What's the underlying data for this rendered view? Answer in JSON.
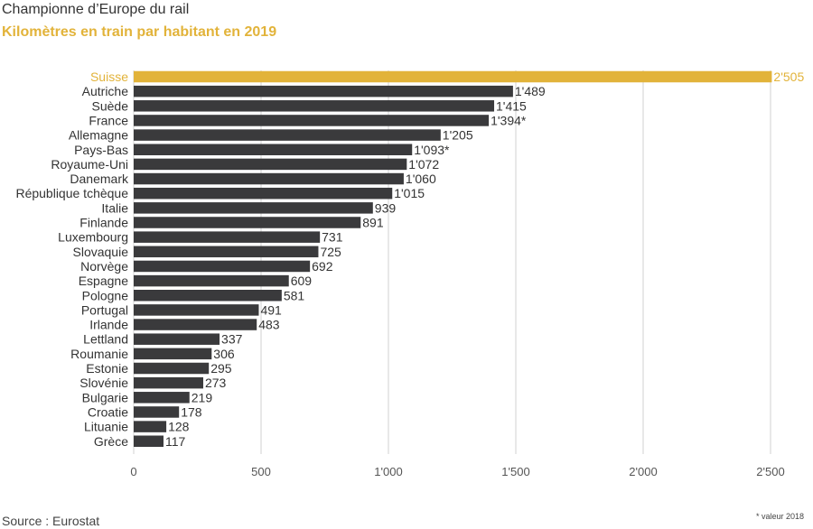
{
  "title": "Championne d’Europe du rail",
  "subtitle": "Kilomètres en train par habitant en 2019",
  "source": "Source : Eurostat",
  "footnote": "* valeur 2018",
  "colors": {
    "highlight": "#e2b33a",
    "bar": "#3a3a3c",
    "grid": "#d0d0d0",
    "text": "#333333"
  },
  "chart_data": {
    "type": "bar",
    "orientation": "horizontal",
    "categories": [
      "Suisse",
      "Autriche",
      "Suède",
      "France",
      "Allemagne",
      "Pays-Bas",
      "Royaume-Uni",
      "Danemark",
      "République tchèque",
      "Italie",
      "Finlande",
      "Luxembourg",
      "Slovaquie",
      "Norvège",
      "Espagne",
      "Pologne",
      "Portugal",
      "Irlande",
      "Lettland",
      "Roumanie",
      "Estonie",
      "Slovénie",
      "Bulgarie",
      "Croatie",
      "Lituanie",
      "Grèce"
    ],
    "values": [
      2505,
      1489,
      1415,
      1394,
      1205,
      1093,
      1072,
      1060,
      1015,
      939,
      891,
      731,
      725,
      692,
      609,
      581,
      491,
      483,
      337,
      306,
      295,
      273,
      219,
      178,
      128,
      117
    ],
    "labels": [
      "2'505",
      "1'489",
      "1'415",
      "1'394",
      "1'205",
      "1'093",
      "1'072",
      "1'060",
      "1'015",
      "939",
      "891",
      "731",
      "725",
      "692",
      "609",
      "581",
      "491",
      "483",
      "337",
      "306",
      "295",
      "273",
      "219",
      "178",
      "128",
      "117"
    ],
    "flags": [
      "",
      "",
      "",
      "*",
      "",
      "*",
      "",
      "",
      "",
      "",
      "",
      "",
      "",
      "",
      "",
      "",
      "",
      "",
      "",
      "",
      "",
      "",
      "",
      "",
      "",
      ""
    ],
    "highlight": [
      "Suisse"
    ],
    "xlim": [
      0,
      2500
    ],
    "xticks": [
      0,
      500,
      1000,
      1500,
      2000,
      2500
    ],
    "xtick_labels": [
      "0",
      "500",
      "1'000",
      "1'500",
      "2'000",
      "2'500"
    ],
    "grid": true
  }
}
